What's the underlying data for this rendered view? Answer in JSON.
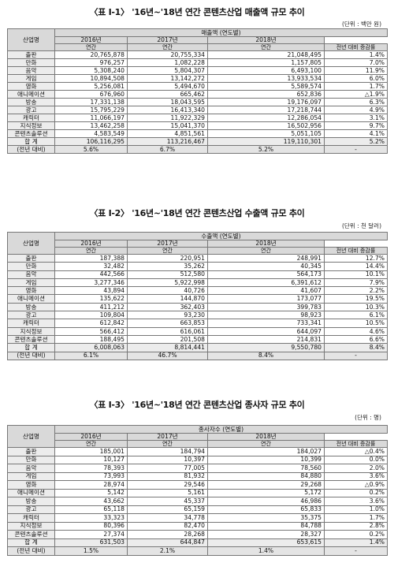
{
  "tables": [
    {
      "title": "〈표 Ⅰ-1〉 '16년~'18년 연간 콘텐츠산업 매출액 규모 추이",
      "unit": "(단위 : 백만 원)",
      "item_header": "산업명",
      "group_header": "매출액 (연도별)",
      "years": [
        "2016년",
        "2017년",
        "2018년"
      ],
      "sub_headers": [
        "연간",
        "연간",
        "연간",
        "전년 대비 증감률"
      ],
      "rows": [
        {
          "name": "출판",
          "v": [
            "20,765,878",
            "20,755,334",
            "21,048,495",
            "1.4%"
          ]
        },
        {
          "name": "만화",
          "v": [
            "976,257",
            "1,082,228",
            "1,157,805",
            "7.0%"
          ]
        },
        {
          "name": "음악",
          "v": [
            "5,308,240",
            "5,804,307",
            "6,493,100",
            "11.9%"
          ]
        },
        {
          "name": "게임",
          "v": [
            "10,894,508",
            "13,142,272",
            "13,933,534",
            "6.0%"
          ]
        },
        {
          "name": "영화",
          "v": [
            "5,256,081",
            "5,494,670",
            "5,589,574",
            "1.7%"
          ]
        },
        {
          "name": "애니메이션",
          "v": [
            "676,960",
            "665,462",
            "652,836",
            "△1.9%"
          ]
        },
        {
          "name": "방송",
          "v": [
            "17,331,138",
            "18,043,595",
            "19,176,097",
            "6.3%"
          ]
        },
        {
          "name": "광고",
          "v": [
            "15,795,229",
            "16,413,340",
            "17,218,744",
            "4.9%"
          ]
        },
        {
          "name": "캐릭터",
          "v": [
            "11,066,197",
            "11,922,329",
            "12,286,054",
            "3.1%"
          ]
        },
        {
          "name": "지식정보",
          "v": [
            "13,462,258",
            "15,041,370",
            "16,502,956",
            "9.7%"
          ]
        },
        {
          "name": "콘텐츠솔루션",
          "v": [
            "4,583,549",
            "4,851,561",
            "5,051,105",
            "4.1%"
          ]
        }
      ],
      "total": {
        "name": "합 계",
        "v": [
          "106,116,295",
          "113,216,467",
          "119,110,301",
          "5.2%"
        ]
      },
      "growth": {
        "name": "(전년 대비)",
        "v": [
          "5.6%",
          "6.7%",
          "5.2%",
          "-"
        ]
      }
    },
    {
      "title": "〈표 Ⅰ-2〉 '16년~'18년 연간 콘텐츠산업 수출액 규모 추이",
      "unit": "(단위 : 천 달러)",
      "item_header": "산업명",
      "group_header": "수출액 (연도별)",
      "years": [
        "2016년",
        "2017년",
        "2018년"
      ],
      "sub_headers": [
        "연간",
        "연간",
        "연간",
        "전년 대비 증감률"
      ],
      "rows": [
        {
          "name": "출판",
          "v": [
            "187,388",
            "220,951",
            "248,991",
            "12.7%"
          ]
        },
        {
          "name": "만화",
          "v": [
            "32,482",
            "35,262",
            "40,345",
            "14.4%"
          ]
        },
        {
          "name": "음악",
          "v": [
            "442,566",
            "512,580",
            "564,173",
            "10.1%"
          ]
        },
        {
          "name": "게임",
          "v": [
            "3,277,346",
            "5,922,998",
            "6,391,612",
            "7.9%"
          ]
        },
        {
          "name": "영화",
          "v": [
            "43,894",
            "40,726",
            "41,607",
            "2.2%"
          ]
        },
        {
          "name": "애니메이션",
          "v": [
            "135,622",
            "144,870",
            "173,077",
            "19.5%"
          ]
        },
        {
          "name": "방송",
          "v": [
            "411,212",
            "362,403",
            "399,783",
            "10.3%"
          ]
        },
        {
          "name": "광고",
          "v": [
            "109,804",
            "93,230",
            "98,923",
            "6.1%"
          ]
        },
        {
          "name": "캐릭터",
          "v": [
            "612,842",
            "663,853",
            "733,341",
            "10.5%"
          ]
        },
        {
          "name": "지식정보",
          "v": [
            "566,412",
            "616,061",
            "644,097",
            "4.6%"
          ]
        },
        {
          "name": "콘텐츠솔루션",
          "v": [
            "188,495",
            "201,508",
            "214,831",
            "6.6%"
          ]
        }
      ],
      "total": {
        "name": "합 계",
        "v": [
          "6,008,063",
          "8,814,441",
          "9,550,780",
          "8.4%"
        ]
      },
      "growth": {
        "name": "(전년 대비)",
        "v": [
          "6.1%",
          "46.7%",
          "8.4%",
          "-"
        ]
      }
    },
    {
      "title": "〈표 Ⅰ-3〉 '16년~'18년 연간 콘텐츠산업 종사자 규모 추이",
      "unit": "(단위 : 명)",
      "item_header": "산업명",
      "group_header": "종사자수 (연도별)",
      "years": [
        "2016년",
        "2017년",
        "2018년"
      ],
      "sub_headers": [
        "연간",
        "연간",
        "연간",
        "전년 대비 증감률"
      ],
      "rows": [
        {
          "name": "출판",
          "v": [
            "185,001",
            "184,794",
            "184,027",
            "△0.4%"
          ]
        },
        {
          "name": "만화",
          "v": [
            "10,127",
            "10,397",
            "10,399",
            "0.0%"
          ]
        },
        {
          "name": "음악",
          "v": [
            "78,393",
            "77,005",
            "78,560",
            "2.0%"
          ]
        },
        {
          "name": "게임",
          "v": [
            "73,993",
            "81,932",
            "84,880",
            "3.6%"
          ]
        },
        {
          "name": "영화",
          "v": [
            "28,974",
            "29,546",
            "29,268",
            "△0.9%"
          ]
        },
        {
          "name": "애니메이션",
          "v": [
            "5,142",
            "5,161",
            "5,172",
            "0.2%"
          ]
        },
        {
          "name": "방송",
          "v": [
            "43,662",
            "45,337",
            "46,986",
            "3.6%"
          ]
        },
        {
          "name": "광고",
          "v": [
            "65,118",
            "65,159",
            "65,833",
            "1.0%"
          ]
        },
        {
          "name": "캐릭터",
          "v": [
            "33,323",
            "34,778",
            "35,375",
            "1.7%"
          ]
        },
        {
          "name": "지식정보",
          "v": [
            "80,396",
            "82,470",
            "84,788",
            "2.8%"
          ]
        },
        {
          "name": "콘텐츠솔루션",
          "v": [
            "27,374",
            "28,268",
            "28,327",
            "0.2%"
          ]
        }
      ],
      "total": {
        "name": "합 계",
        "v": [
          "631,503",
          "644,847",
          "653,615",
          "1.4%"
        ]
      },
      "growth": {
        "name": "(전년 대비)",
        "v": [
          "1.5%",
          "2.1%",
          "1.4%",
          "-"
        ]
      }
    }
  ]
}
